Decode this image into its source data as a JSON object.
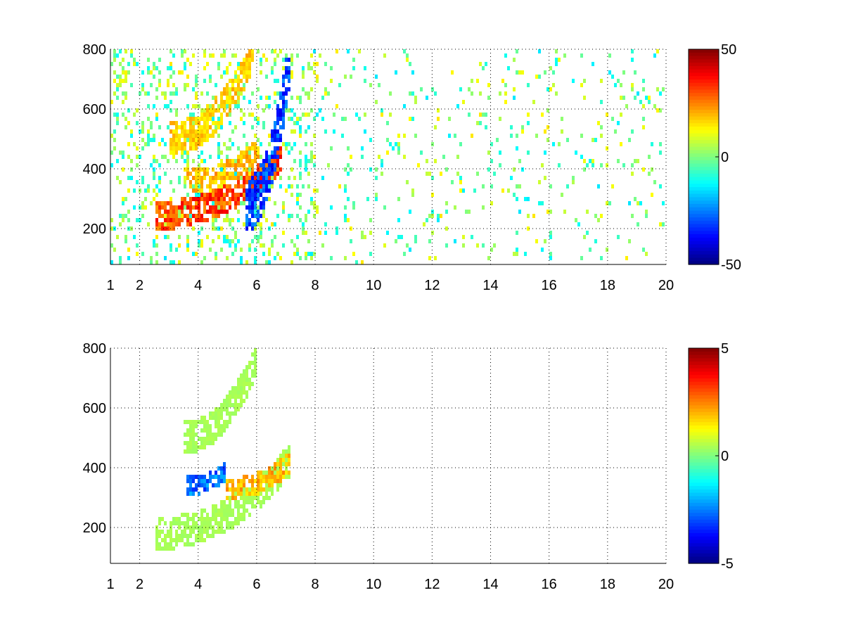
{
  "chart_data": [
    {
      "type": "heatmap",
      "title": "",
      "xlabel": "",
      "ylabel": "",
      "xlim": [
        1,
        20
      ],
      "ylim": [
        80,
        800
      ],
      "xticks": [
        1,
        2,
        4,
        6,
        8,
        10,
        12,
        14,
        16,
        18,
        20
      ],
      "yticks": [
        200,
        400,
        600,
        800
      ],
      "grid": true,
      "colormap": "jet",
      "colorbar": {
        "min": -50,
        "max": 50,
        "ticks": [
          50,
          0,
          -50
        ]
      },
      "features": [
        {
          "x0": 2.5,
          "x1": 6.9,
          "y0": 245,
          "y1": 440,
          "value": 40,
          "desc": "main ridge"
        },
        {
          "x0": 5.6,
          "x1": 7.2,
          "y0": 275,
          "y1": 800,
          "value": -40,
          "desc": "negative ridge"
        },
        {
          "x0": 3.0,
          "x1": 5.9,
          "y0": 500,
          "y1": 790,
          "value": 22,
          "desc": "upper ridge"
        },
        {
          "x0": 3.6,
          "x1": 6.1,
          "y0": 360,
          "y1": 470,
          "value": 25,
          "desc": "middle ridge"
        }
      ]
    },
    {
      "type": "heatmap",
      "title": "",
      "xlabel": "",
      "ylabel": "",
      "xlim": [
        1,
        20
      ],
      "ylim": [
        80,
        800
      ],
      "xticks": [
        1,
        2,
        4,
        6,
        8,
        10,
        12,
        14,
        16,
        18,
        20
      ],
      "yticks": [
        200,
        400,
        600,
        800
      ],
      "grid": true,
      "colormap": "jet",
      "colorbar": {
        "min": -5,
        "max": 5,
        "ticks": [
          5,
          0,
          -5
        ]
      },
      "features": [
        {
          "x0": 2.5,
          "x1": 7.2,
          "y0": 180,
          "y1": 430,
          "value": 0.5,
          "desc": "lower band"
        },
        {
          "x0": 3.5,
          "x1": 6.0,
          "y0": 500,
          "y1": 760,
          "value": 0.5,
          "desc": "upper band"
        },
        {
          "x0": 3.6,
          "x1": 5.0,
          "y0": 340,
          "y1": 390,
          "value": -3.5,
          "desc": "negative streak"
        },
        {
          "x0": 5.0,
          "x1": 7.2,
          "y0": 330,
          "y1": 420,
          "value": 2.5,
          "desc": "positive patch"
        }
      ]
    }
  ]
}
